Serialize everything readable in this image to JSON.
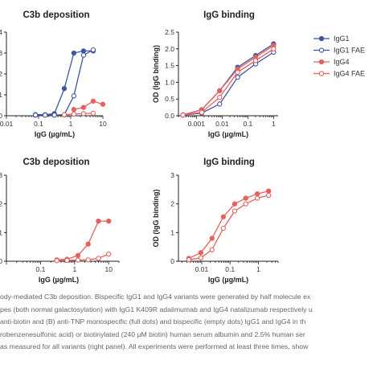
{
  "legend": {
    "entries": [
      {
        "label": "IgG1",
        "color": "#3e55a3",
        "filled": true
      },
      {
        "label": "IgG1 FAE",
        "color": "#3e55a3",
        "filled": false
      },
      {
        "label": "IgG4",
        "color": "#e8605e",
        "filled": true
      },
      {
        "label": "IgG4 FAE",
        "color": "#e8605e",
        "filled": false
      }
    ]
  },
  "chart_data": [
    {
      "panel": "top-left",
      "type": "line",
      "title": "C3b deposition",
      "xlabel": "IgG (µg/mL)",
      "ylabel": "",
      "xscale": "log",
      "xlim": [
        0.01,
        10
      ],
      "x_ticks": [
        "0.01",
        "0.1",
        "1",
        "10"
      ],
      "ylim": [
        0,
        4
      ],
      "y_ticks": [
        "0",
        "1",
        "2",
        "3",
        "4"
      ],
      "series": [
        {
          "name": "IgG1",
          "color": "#3e55a3",
          "filled": true,
          "x": [
            0.08,
            0.16,
            0.31,
            0.63,
            1.25,
            2.5,
            5
          ],
          "y": [
            0.05,
            0.05,
            0.1,
            1.3,
            3.0,
            3.1,
            3.1
          ]
        },
        {
          "name": "IgG1 FAE",
          "color": "#3e55a3",
          "filled": false,
          "x": [
            0.08,
            0.16,
            0.31,
            0.63,
            1.25,
            2.5,
            5
          ],
          "y": [
            0.03,
            0.03,
            0.03,
            0.05,
            0.95,
            2.9,
            3.15
          ]
        },
        {
          "name": "IgG4",
          "color": "#e8605e",
          "filled": true,
          "x": [
            1.25,
            2.5,
            5,
            10
          ],
          "y": [
            0.3,
            0.4,
            0.7,
            0.55
          ]
        },
        {
          "name": "IgG4 FAE",
          "color": "#e8605e",
          "filled": false,
          "x": [
            0.63,
            1.25,
            2.5,
            5
          ],
          "y": [
            0.05,
            0.08,
            0.1,
            0.12
          ]
        }
      ]
    },
    {
      "panel": "top-right",
      "type": "line",
      "title": "IgG binding",
      "xlabel": "IgG (µg/mL)",
      "ylabel": "OD (IgG binding)",
      "xscale": "log",
      "xlim": [
        0.0002,
        1.5
      ],
      "x_ticks": [
        "0.001",
        "0.01",
        "0.1",
        "1"
      ],
      "ylim": [
        0,
        2.5
      ],
      "y_ticks": [
        "0.0",
        "0.5",
        "1.0",
        "1.5",
        "2.0",
        "2.5"
      ],
      "series": [
        {
          "name": "IgG1",
          "color": "#3e55a3",
          "filled": true,
          "x": [
            0.0003,
            0.0016,
            0.008,
            0.04,
            0.2,
            1
          ],
          "y": [
            0.02,
            0.18,
            0.75,
            1.45,
            1.8,
            2.15
          ]
        },
        {
          "name": "IgG1 FAE",
          "color": "#3e55a3",
          "filled": false,
          "x": [
            0.0003,
            0.0016,
            0.008,
            0.04,
            0.2,
            1
          ],
          "y": [
            0.02,
            0.08,
            0.35,
            1.15,
            1.55,
            1.9
          ]
        },
        {
          "name": "IgG4",
          "color": "#e8605e",
          "filled": true,
          "x": [
            0.0003,
            0.0016,
            0.008,
            0.04,
            0.2,
            1
          ],
          "y": [
            0.03,
            0.18,
            0.75,
            1.4,
            1.75,
            2.1
          ]
        },
        {
          "name": "IgG4 FAE",
          "color": "#e8605e",
          "filled": false,
          "x": [
            0.0003,
            0.0016,
            0.008,
            0.04,
            0.2,
            1
          ],
          "y": [
            0.02,
            0.1,
            0.55,
            1.3,
            1.65,
            2.0
          ]
        }
      ]
    },
    {
      "panel": "bottom-left",
      "type": "line",
      "title": "C3b deposition",
      "xlabel": "IgG (µg/mL)",
      "ylabel": "",
      "xscale": "log",
      "xlim": [
        0.01,
        20
      ],
      "x_ticks": [
        "0.1",
        "1",
        "10"
      ],
      "ylim": [
        0,
        3
      ],
      "y_ticks": [
        "0",
        "1",
        "2",
        "3"
      ],
      "series": [
        {
          "name": "IgG4",
          "color": "#e8605e",
          "filled": true,
          "x": [
            0.3,
            0.6,
            1.25,
            2.5,
            5,
            10
          ],
          "y": [
            0.05,
            0.07,
            0.2,
            0.6,
            1.4,
            1.4
          ]
        },
        {
          "name": "IgG4 FAE",
          "color": "#e8605e",
          "filled": false,
          "x": [
            0.3,
            0.6,
            1.25,
            2.5,
            5,
            10
          ],
          "y": [
            0.02,
            0.03,
            0.04,
            0.05,
            0.1,
            0.25
          ]
        }
      ]
    },
    {
      "panel": "bottom-right",
      "type": "line",
      "title": "IgG binding",
      "xlabel": "IgG (µg/mL)",
      "ylabel": "OD (IgG binding)",
      "xscale": "log",
      "xlim": [
        0.0015,
        5
      ],
      "x_ticks": [
        "0.01",
        "0.1",
        "1"
      ],
      "ylim": [
        0,
        3
      ],
      "y_ticks": [
        "0",
        "1",
        "2",
        "3"
      ],
      "series": [
        {
          "name": "IgG4",
          "color": "#e8605e",
          "filled": true,
          "x": [
            0.0035,
            0.0093,
            0.023,
            0.058,
            0.146,
            0.36,
            0.92,
            2.3
          ],
          "y": [
            0.1,
            0.3,
            0.8,
            1.55,
            2.0,
            2.2,
            2.35,
            2.45
          ]
        },
        {
          "name": "IgG4 FAE",
          "color": "#e8605e",
          "filled": false,
          "x": [
            0.0035,
            0.0093,
            0.023,
            0.058,
            0.146,
            0.36,
            0.92,
            2.3
          ],
          "y": [
            0.05,
            0.12,
            0.4,
            1.15,
            1.75,
            2.0,
            2.2,
            2.3
          ]
        }
      ]
    }
  ],
  "caption": {
    "lines": [
      "ody-mediated C3b deposition. Bispecific IgG1 and IgG4 variants were generated by half molecule ex",
      "pes (both normal galactosylation) with IgG1 K409R adalimumab and IgG4 natalizumab respectively u",
      "anti-biotin and (B) anti-TNP monospecific (full dots) and bispecific (empty dots) IgG1 and IgG4 in th",
      "robenzenesulfonic acid) or biotinylated (240 µM biotin) human serum albumin and 2.5% human ser",
      "as measured for all variants (right panel). All experiments were performed at least three times, show"
    ]
  }
}
